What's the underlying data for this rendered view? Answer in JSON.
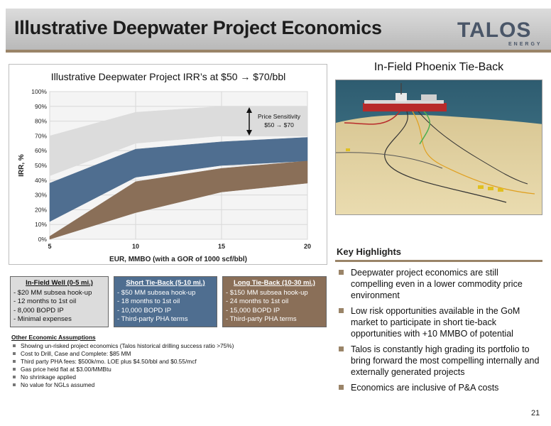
{
  "header": {
    "title": "Illustrative Deepwater Project Economics",
    "logo_word": "TALOS",
    "logo_sub": "ENERGY"
  },
  "chart_data": {
    "type": "area",
    "title": "Illustrative Deepwater Project IRR’s at $50 → $70/bbl",
    "xlabel": "EUR, MMBO (with a GOR of 1000 scf/bbl)",
    "ylabel": "IRR, %",
    "x": [
      5,
      10,
      15,
      20
    ],
    "xlim": [
      5,
      20
    ],
    "ylim": [
      0,
      100
    ],
    "x_ticks": [
      "5",
      "10",
      "15",
      "20"
    ],
    "y_ticks": [
      "0%",
      "10%",
      "20%",
      "30%",
      "40%",
      "50%",
      "60%",
      "70%",
      "80%",
      "90%",
      "100%"
    ],
    "grid": true,
    "bands": [
      {
        "name": "In-Field Well (0-5 mi.)",
        "color": "#dcdcdc",
        "low": [
          43,
          65,
          70,
          70
        ],
        "high": [
          70,
          86,
          90,
          90
        ]
      },
      {
        "name": "Short Tie-Back (5-10 mi.)",
        "color": "#4f6e90",
        "low": [
          12,
          42,
          50,
          53
        ],
        "high": [
          38,
          61,
          66,
          69
        ]
      },
      {
        "name": "Long Tie-Back (10-30 mi.)",
        "color": "#8a6f58",
        "low": [
          0,
          18,
          32,
          38
        ],
        "high": [
          2,
          39,
          48,
          53
        ]
      }
    ],
    "annotation": {
      "line1": "Price Sensitivity",
      "line2": "$50 → $70"
    }
  },
  "boxes": [
    {
      "title": "In-Field Well (0-5 mi.)",
      "lines": [
        "- $20 MM subsea hook-up",
        "- 12 months to 1st oil",
        "- 8,000 BOPD IP",
        "- Minimal expenses"
      ]
    },
    {
      "title": "Short Tie-Back (5-10 mi.)",
      "lines": [
        "- $50 MM subsea hook-up",
        "- 18 months to 1st oil",
        "- 10,000 BOPD IP",
        "- Third-party PHA terms"
      ]
    },
    {
      "title": "Long Tie-Back (10-30 mi.)",
      "lines": [
        "- $150 MM subsea hook-up",
        "- 24 months to 1st oil",
        "- 15,000 BOPD IP",
        "- Third-party PHA terms"
      ]
    }
  ],
  "assumptions": {
    "title": "Other Economic Assumptions",
    "items": [
      "Showing un-risked project economics (Talos historical drilling success ratio >75%)",
      "Cost to Drill, Case and Complete: $85 MM",
      "Third party PHA fees: $500k/mo. LOE plus $4.50/bbl and $0.55/mcf",
      "Gas price held flat at $3.00/MMBtu",
      "No shrinkage applied",
      "No value for NGLs assumed"
    ]
  },
  "photo": {
    "title": "In-Field Phoenix Tie-Back"
  },
  "highlights": {
    "title": "Key Highlights",
    "items": [
      "Deepwater project economics are still compelling even in a lower commodity price environment",
      "Low risk opportunities available in the GoM market to participate in short tie-back opportunities with +10 MMBO of potential",
      "Talos is constantly high grading its portfolio to bring forward the most compelling internally and externally generated projects",
      "Economics are inclusive of P&A costs"
    ]
  },
  "page_number": "21",
  "colors": {
    "accent": "#9a8468",
    "short_blue": "#4f6e90",
    "long_brown": "#8a6f58",
    "infield_grey": "#dcdcdc"
  }
}
